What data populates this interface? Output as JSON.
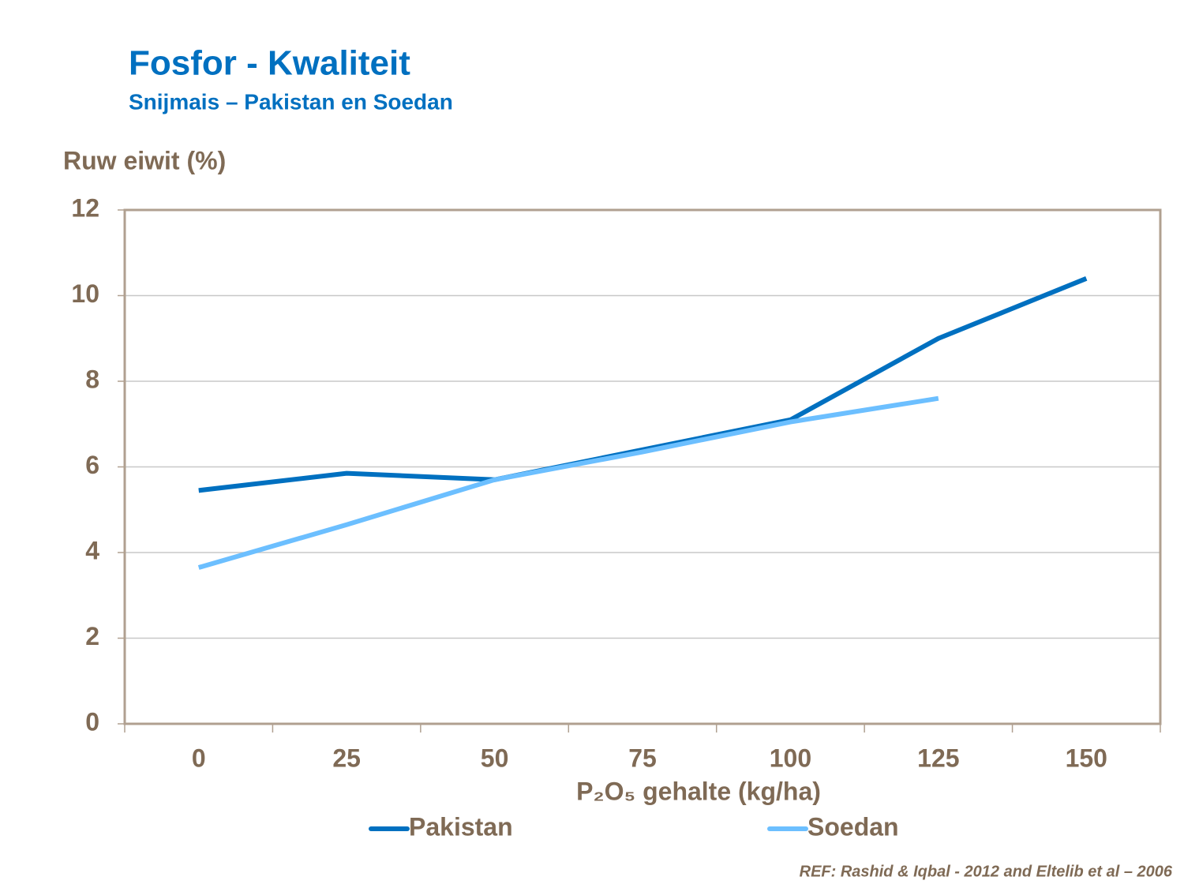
{
  "chart_data": {
    "type": "line",
    "title": "Fosfor - Kwaliteit",
    "subtitle": "Snijmais – Pakistan en Soedan",
    "y_label": "Ruw eiwit (%)",
    "x_label": "P₂O₅ gehalte (kg/ha)",
    "reference": "REF: Rashid & Iqbal - 2012 and Eltelib et al – 2006",
    "categories": [
      "0",
      "25",
      "50",
      "75",
      "100",
      "125",
      "150"
    ],
    "series": [
      {
        "name": "Pakistan",
        "color": "#0070c0",
        "values": [
          5.45,
          5.85,
          5.7,
          6.4,
          7.1,
          9.0,
          10.4
        ]
      },
      {
        "name": "Soedan",
        "color": "#6cbfff",
        "values": [
          3.65,
          4.65,
          5.7,
          6.35,
          7.05,
          7.6,
          null
        ]
      }
    ],
    "ylim": [
      0,
      12
    ],
    "yticks": [
      0,
      2,
      4,
      6,
      8,
      10,
      12
    ],
    "grid": true,
    "legend": "bottom"
  }
}
